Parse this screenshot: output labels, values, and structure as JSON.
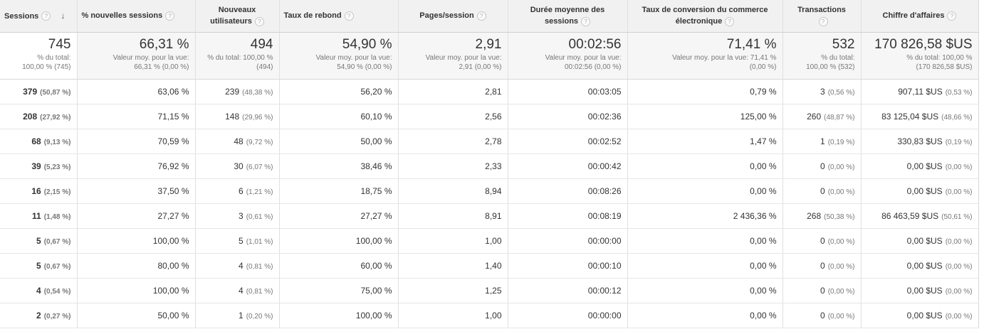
{
  "headers": [
    {
      "label": "Sessions",
      "q": "?",
      "sort": "↓"
    },
    {
      "label": "% nouvelles sessions",
      "q": "?"
    },
    {
      "label1": "Nouveaux",
      "label2": "utilisateurs",
      "q": "?"
    },
    {
      "label": "Taux de rebond",
      "q": "?"
    },
    {
      "label": "Pages/session",
      "q": "?"
    },
    {
      "label1": "Durée moyenne des",
      "label2": "sessions",
      "q": "?"
    },
    {
      "label1": "Taux de conversion du commerce",
      "label2": "électronique",
      "q": "?"
    },
    {
      "label": "Transactions",
      "q": "?"
    },
    {
      "label": "Chiffre d'affaires",
      "q": "?"
    }
  ],
  "totals": [
    {
      "value": "745",
      "sub1": "% du total:",
      "sub2": "100,00 % (745)"
    },
    {
      "value": "66,31 %",
      "sub1": "Valeur moy. pour la vue:",
      "sub2": "66,31 % (0,00 %)"
    },
    {
      "value": "494",
      "sub1": "% du total: 100,00 %",
      "sub2": "(494)"
    },
    {
      "value": "54,90 %",
      "sub1": "Valeur moy. pour la vue:",
      "sub2": "54,90 % (0,00 %)"
    },
    {
      "value": "2,91",
      "sub1": "Valeur moy. pour la vue:",
      "sub2": "2,91 (0,00 %)"
    },
    {
      "value": "00:02:56",
      "sub1": "Valeur moy. pour la vue:",
      "sub2": "00:02:56 (0,00 %)"
    },
    {
      "value": "71,41 %",
      "sub1": "Valeur moy. pour la vue: 71,41 %",
      "sub2": "(0,00 %)"
    },
    {
      "value": "532",
      "sub1": "% du total:",
      "sub2": "100,00 % (532)"
    },
    {
      "value": "170 826,58 $US",
      "sub1": "% du total: 100,00 %",
      "sub2": "(170 826,58 $US)"
    }
  ],
  "rows": [
    {
      "sessions": "379",
      "sessions_pct": "(50,87 %)",
      "new_sessions": "63,06 %",
      "new_users": "239",
      "new_users_pct": "(48,38 %)",
      "bounce": "56,20 %",
      "pages": "2,81",
      "duration": "00:03:05",
      "conversion": "0,79 %",
      "transactions": "3",
      "transactions_pct": "(0,56 %)",
      "revenue": "907,11 $US",
      "revenue_pct": "(0,53 %)"
    },
    {
      "sessions": "208",
      "sessions_pct": "(27,92 %)",
      "new_sessions": "71,15 %",
      "new_users": "148",
      "new_users_pct": "(29,96 %)",
      "bounce": "60,10 %",
      "pages": "2,56",
      "duration": "00:02:36",
      "conversion": "125,00 %",
      "transactions": "260",
      "transactions_pct": "(48,87 %)",
      "revenue": "83 125,04 $US",
      "revenue_pct": "(48,66 %)"
    },
    {
      "sessions": "68",
      "sessions_pct": "(9,13 %)",
      "new_sessions": "70,59 %",
      "new_users": "48",
      "new_users_pct": "(9,72 %)",
      "bounce": "50,00 %",
      "pages": "2,78",
      "duration": "00:02:52",
      "conversion": "1,47 %",
      "transactions": "1",
      "transactions_pct": "(0,19 %)",
      "revenue": "330,83 $US",
      "revenue_pct": "(0,19 %)"
    },
    {
      "sessions": "39",
      "sessions_pct": "(5,23 %)",
      "new_sessions": "76,92 %",
      "new_users": "30",
      "new_users_pct": "(6,07 %)",
      "bounce": "38,46 %",
      "pages": "2,33",
      "duration": "00:00:42",
      "conversion": "0,00 %",
      "transactions": "0",
      "transactions_pct": "(0,00 %)",
      "revenue": "0,00 $US",
      "revenue_pct": "(0,00 %)"
    },
    {
      "sessions": "16",
      "sessions_pct": "(2,15 %)",
      "new_sessions": "37,50 %",
      "new_users": "6",
      "new_users_pct": "(1,21 %)",
      "bounce": "18,75 %",
      "pages": "8,94",
      "duration": "00:08:26",
      "conversion": "0,00 %",
      "transactions": "0",
      "transactions_pct": "(0,00 %)",
      "revenue": "0,00 $US",
      "revenue_pct": "(0,00 %)"
    },
    {
      "sessions": "11",
      "sessions_pct": "(1,48 %)",
      "new_sessions": "27,27 %",
      "new_users": "3",
      "new_users_pct": "(0,61 %)",
      "bounce": "27,27 %",
      "pages": "8,91",
      "duration": "00:08:19",
      "conversion": "2 436,36 %",
      "transactions": "268",
      "transactions_pct": "(50,38 %)",
      "revenue": "86 463,59 $US",
      "revenue_pct": "(50,61 %)"
    },
    {
      "sessions": "5",
      "sessions_pct": "(0,67 %)",
      "new_sessions": "100,00 %",
      "new_users": "5",
      "new_users_pct": "(1,01 %)",
      "bounce": "100,00 %",
      "pages": "1,00",
      "duration": "00:00:00",
      "conversion": "0,00 %",
      "transactions": "0",
      "transactions_pct": "(0,00 %)",
      "revenue": "0,00 $US",
      "revenue_pct": "(0,00 %)"
    },
    {
      "sessions": "5",
      "sessions_pct": "(0,67 %)",
      "new_sessions": "80,00 %",
      "new_users": "4",
      "new_users_pct": "(0,81 %)",
      "bounce": "60,00 %",
      "pages": "1,40",
      "duration": "00:00:10",
      "conversion": "0,00 %",
      "transactions": "0",
      "transactions_pct": "(0,00 %)",
      "revenue": "0,00 $US",
      "revenue_pct": "(0,00 %)"
    },
    {
      "sessions": "4",
      "sessions_pct": "(0,54 %)",
      "new_sessions": "100,00 %",
      "new_users": "4",
      "new_users_pct": "(0,81 %)",
      "bounce": "75,00 %",
      "pages": "1,25",
      "duration": "00:00:12",
      "conversion": "0,00 %",
      "transactions": "0",
      "transactions_pct": "(0,00 %)",
      "revenue": "0,00 $US",
      "revenue_pct": "(0,00 %)"
    },
    {
      "sessions": "2",
      "sessions_pct": "(0,27 %)",
      "new_sessions": "50,00 %",
      "new_users": "1",
      "new_users_pct": "(0,20 %)",
      "bounce": "100,00 %",
      "pages": "1,00",
      "duration": "00:00:00",
      "conversion": "0,00 %",
      "transactions": "0",
      "transactions_pct": "(0,00 %)",
      "revenue": "0,00 $US",
      "revenue_pct": "(0,00 %)"
    }
  ]
}
